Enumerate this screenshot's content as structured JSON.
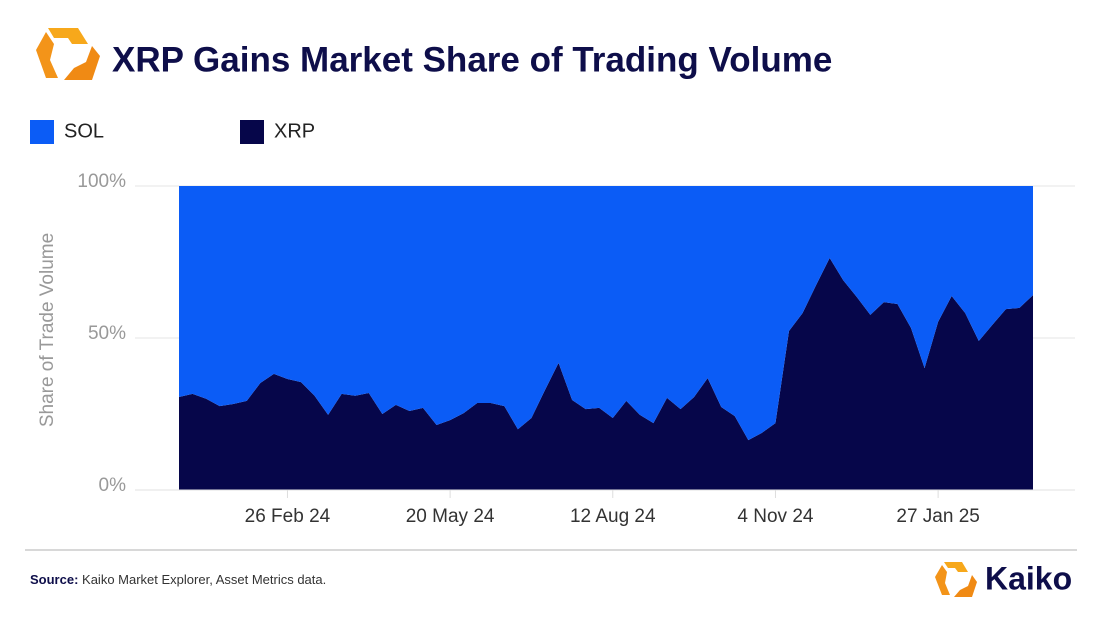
{
  "chart_data": {
    "type": "stacked_area",
    "title": "XRP Gains Market Share of Trading Volume",
    "y_label": "Share of Trade Volume",
    "x": [
      "2024-01-01",
      "2024-01-08",
      "2024-01-15",
      "2024-01-22",
      "2024-01-29",
      "2024-02-05",
      "2024-02-12",
      "2024-02-19",
      "2024-02-26",
      "2024-03-04",
      "2024-03-11",
      "2024-03-18",
      "2024-03-25",
      "2024-04-01",
      "2024-04-08",
      "2024-04-15",
      "2024-04-22",
      "2024-04-29",
      "2024-05-06",
      "2024-05-13",
      "2024-05-20",
      "2024-05-27",
      "2024-06-03",
      "2024-06-10",
      "2024-06-17",
      "2024-06-24",
      "2024-07-01",
      "2024-07-08",
      "2024-07-15",
      "2024-07-22",
      "2024-07-29",
      "2024-08-05",
      "2024-08-12",
      "2024-08-19",
      "2024-08-26",
      "2024-09-02",
      "2024-09-09",
      "2024-09-16",
      "2024-09-23",
      "2024-09-30",
      "2024-10-07",
      "2024-10-14",
      "2024-10-21",
      "2024-10-28",
      "2024-11-04",
      "2024-11-11",
      "2024-11-18",
      "2024-11-25",
      "2024-12-02",
      "2024-12-09",
      "2024-12-16",
      "2024-12-23",
      "2024-12-30",
      "2025-01-06",
      "2025-01-13",
      "2025-01-20",
      "2025-01-27",
      "2025-02-03",
      "2025-02-10",
      "2025-02-17",
      "2025-02-24",
      "2025-03-03",
      "2025-03-10",
      "2025-03-17"
    ],
    "series": [
      {
        "name": "SOL",
        "color": "#0b5cf6",
        "values": [
          69.4,
          68.4,
          70,
          72.4,
          71.7,
          70.7,
          64.8,
          61.8,
          63.5,
          64.5,
          69,
          75.3,
          68.4,
          69,
          68.1,
          75,
          72,
          74,
          73,
          78.6,
          77,
          74.7,
          71.4,
          71.4,
          72.4,
          80,
          76.3,
          67.1,
          58.2,
          70.4,
          73.4,
          73,
          76.3,
          70.7,
          75.3,
          78,
          69.7,
          73.4,
          69.4,
          63.2,
          72.7,
          75.7,
          83.6,
          81.2,
          78,
          47.7,
          41.8,
          32.6,
          23.7,
          31,
          36.5,
          42.4,
          38.2,
          38.8,
          46.7,
          59.9,
          44.7,
          36.2,
          41.8,
          51,
          45.7,
          40.5,
          40.1,
          35.9
        ]
      },
      {
        "name": "XRP",
        "color": "#06064a",
        "values": [
          30.6,
          31.6,
          30,
          27.6,
          28.3,
          29.3,
          35.2,
          38.2,
          36.5,
          35.5,
          31,
          24.7,
          31.6,
          31,
          31.9,
          25,
          28,
          26,
          27,
          21.4,
          23,
          25.3,
          28.6,
          28.6,
          27.6,
          20,
          23.7,
          32.9,
          41.8,
          29.6,
          26.6,
          27,
          23.7,
          29.3,
          24.7,
          22,
          30.3,
          26.6,
          30.6,
          36.8,
          27.3,
          24.3,
          16.4,
          18.8,
          22,
          52.3,
          58.2,
          67.4,
          76.3,
          69,
          63.5,
          57.6,
          61.8,
          61.2,
          53.3,
          40.1,
          55.3,
          63.8,
          58.2,
          49,
          54.3,
          59.5,
          59.9,
          64.1
        ]
      }
    ],
    "xlim": [
      "2024-01-01",
      "2025-03-17"
    ],
    "xticks": [
      {
        "value": "2024-02-26",
        "label": "26 Feb 24"
      },
      {
        "value": "2024-05-20",
        "label": "20 May 24"
      },
      {
        "value": "2024-08-12",
        "label": "12 Aug 24"
      },
      {
        "value": "2024-11-04",
        "label": "4 Nov 24"
      },
      {
        "value": "2025-01-27",
        "label": "27 Jan 25"
      }
    ],
    "ylim": [
      0,
      100
    ],
    "yticks": [
      {
        "value": 0,
        "label": "0%"
      },
      {
        "value": 50,
        "label": "50%"
      },
      {
        "value": 100,
        "label": "100%"
      }
    ],
    "grid": true
  },
  "footer": {
    "source_label": "Source:",
    "source": "Kaiko Market Explorer, Asset Metrics data.",
    "brand": "Kaiko"
  }
}
